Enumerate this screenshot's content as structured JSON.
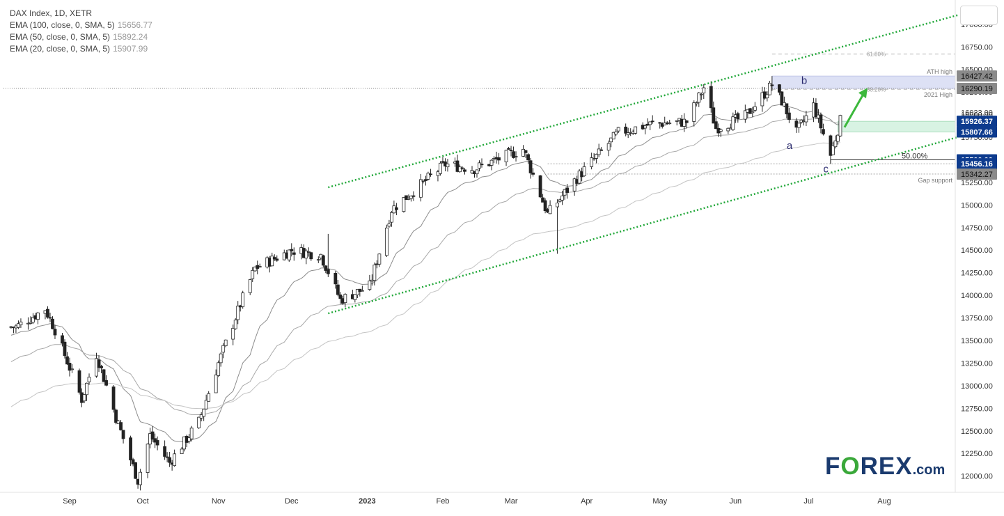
{
  "legend": {
    "title": "DAX Index, 1D, XETR",
    "ema100": {
      "label": "EMA (100, close, 0, SMA, 5)",
      "value": "15656.77"
    },
    "ema50": {
      "label": "EMA (50, close, 0, SMA, 5)",
      "value": "15892.24"
    },
    "ema20": {
      "label": "EMA (20, close, 0, SMA, 5)",
      "value": "15907.99"
    }
  },
  "logo": {
    "prefix": "F",
    "o": "O",
    "suffix": "REX",
    "domain": ".com"
  },
  "colors": {
    "channel": "#22a83a",
    "arrow": "#3cb83c",
    "candle": "#222222",
    "ema": "#9a9a9a",
    "badge_dark": "#0d3b8e",
    "badge_gray": "#8a8a8a",
    "zone_blue": "#dde1f5",
    "zone_green": "#d8f3e3"
  },
  "chart_data": {
    "type": "candlestick",
    "instrument": "DAX Index",
    "interval": "1D",
    "exchange": "XETR",
    "y_axis": {
      "ticks": [
        "17000.00",
        "16750.00",
        "16500.00",
        "16250.00",
        "16000.00",
        "15750.00",
        "15500.00",
        "15250.00",
        "15000.00",
        "14750.00",
        "14500.00",
        "14250.00",
        "14000.00",
        "13750.00",
        "13500.00",
        "13250.00",
        "13000.00",
        "12750.00",
        "12500.00",
        "12250.00",
        "12000.00"
      ],
      "range": [
        11820,
        17230
      ]
    },
    "x_axis": {
      "labels": [
        "Sep",
        "Oct",
        "Nov",
        "Dec",
        "2023",
        "Feb",
        "Mar",
        "Apr",
        "May",
        "Jun",
        "Jul",
        "Aug"
      ]
    },
    "price_badges": [
      {
        "value": "16427.42",
        "style": "gray"
      },
      {
        "value": "16290.19",
        "style": "gray"
      },
      {
        "value": "16023.00",
        "style": "plain"
      },
      {
        "value": "15926.37",
        "style": "dark"
      },
      {
        "value": "15807.66",
        "style": "dark"
      },
      {
        "value": "15500.00",
        "style": "dark"
      },
      {
        "value": "15456.16",
        "style": "dark"
      },
      {
        "value": "15342.27",
        "style": "gray"
      }
    ],
    "annotations": [
      {
        "text": "ATH high",
        "price": 16427.42
      },
      {
        "text": "2021 High",
        "price": 16290.19
      },
      {
        "text": "Gap support",
        "price": 15342.27
      },
      {
        "text": "61.80%",
        "price": 16670
      },
      {
        "text": "38.20%",
        "price": 16280
      },
      {
        "text": "50.00%",
        "price": 15500
      },
      {
        "text": "a",
        "price": 15620
      },
      {
        "text": "b",
        "price": 16340
      },
      {
        "text": "c",
        "price": 15360
      }
    ],
    "channel_upper": {
      "from": [
        "2022-12-16",
        15195
      ],
      "to": [
        "2023-08-31",
        17100
      ]
    },
    "channel_lower": {
      "from": [
        "2022-12-16",
        13800
      ],
      "to": [
        "2023-08-31",
        15750
      ]
    },
    "zones": [
      {
        "name": "ATH zone",
        "from": 16290.19,
        "to": 16427.42
      },
      {
        "name": "support zone",
        "from": 15807.66,
        "to": 15926.37
      }
    ],
    "waypoints": [
      {
        "d": "2022-08-10",
        "p": 13650
      },
      {
        "d": "2022-08-22",
        "p": 13850
      },
      {
        "d": "2022-08-26",
        "p": 13620
      },
      {
        "d": "2022-09-06",
        "p": 12850
      },
      {
        "d": "2022-09-12",
        "p": 13350
      },
      {
        "d": "2022-09-20",
        "p": 12650
      },
      {
        "d": "2022-09-29",
        "p": 11950
      },
      {
        "d": "2022-10-04",
        "p": 12450
      },
      {
        "d": "2022-10-12",
        "p": 12150
      },
      {
        "d": "2022-10-24",
        "p": 12600
      },
      {
        "d": "2022-11-01",
        "p": 13250
      },
      {
        "d": "2022-11-10",
        "p": 13900
      },
      {
        "d": "2022-11-16",
        "p": 14300
      },
      {
        "d": "2022-12-01",
        "p": 14500
      },
      {
        "d": "2022-12-13",
        "p": 14450
      },
      {
        "d": "2022-12-21",
        "p": 13950
      },
      {
        "d": "2023-01-02",
        "p": 14100
      },
      {
        "d": "2023-01-11",
        "p": 14950
      },
      {
        "d": "2023-02-02",
        "p": 15450
      },
      {
        "d": "2023-02-14",
        "p": 15400
      },
      {
        "d": "2023-03-06",
        "p": 15620
      },
      {
        "d": "2023-03-16",
        "p": 14900
      },
      {
        "d": "2023-03-28",
        "p": 15300
      },
      {
        "d": "2023-04-14",
        "p": 15800
      },
      {
        "d": "2023-04-28",
        "p": 15900
      },
      {
        "d": "2023-05-12",
        "p": 15920
      },
      {
        "d": "2023-05-19",
        "p": 16300
      },
      {
        "d": "2023-05-24",
        "p": 15850
      },
      {
        "d": "2023-06-05",
        "p": 15980
      },
      {
        "d": "2023-06-16",
        "p": 16330
      },
      {
        "d": "2023-06-20",
        "p": 16150
      },
      {
        "d": "2023-06-26",
        "p": 15800
      },
      {
        "d": "2023-07-03",
        "p": 16100
      },
      {
        "d": "2023-07-10",
        "p": 15550
      },
      {
        "d": "2023-07-14",
        "p": 15930
      }
    ]
  }
}
